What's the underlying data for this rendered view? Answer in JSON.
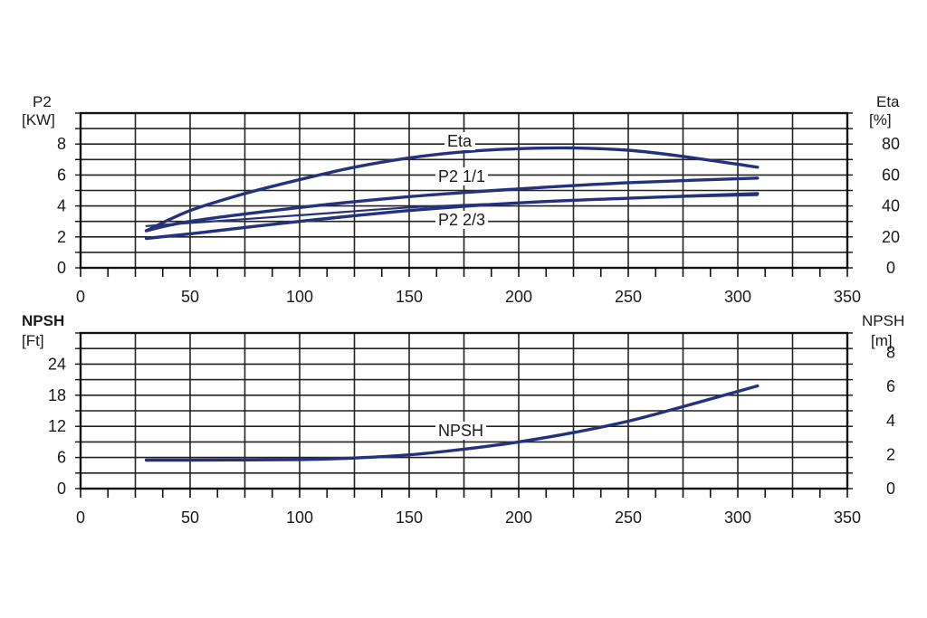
{
  "chart_data": [
    {
      "type": "line",
      "xlim": [
        0,
        350
      ],
      "x_ticks": [
        "0",
        "50",
        "100",
        "150",
        "200",
        "250",
        "300",
        "350"
      ],
      "left_axis": {
        "label_line1": "P2",
        "label_line2": "[KW]",
        "ylim": [
          0,
          10
        ],
        "ticks": [
          "0",
          "2",
          "4",
          "6",
          "8"
        ]
      },
      "right_axis": {
        "label_line1": "Eta",
        "label_line2": "[%]",
        "ylim": [
          0,
          100
        ],
        "ticks": [
          "0",
          "20",
          "40",
          "60",
          "80"
        ]
      },
      "grid": true,
      "series": [
        {
          "name": "Eta",
          "axis": "right",
          "x": [
            30,
            50,
            75,
            100,
            125,
            150,
            175,
            200,
            225,
            250,
            275,
            309
          ],
          "y": [
            24,
            37,
            48,
            57,
            65,
            71,
            75,
            77,
            77.5,
            76,
            72,
            65
          ]
        },
        {
          "name": "P2 1/1",
          "axis": "left",
          "x": [
            30,
            50,
            100,
            150,
            200,
            250,
            309
          ],
          "y": [
            2.4,
            3.0,
            3.9,
            4.6,
            5.1,
            5.5,
            5.8
          ]
        },
        {
          "name": "P2 2/3",
          "axis": "left",
          "x": [
            30,
            50,
            100,
            150,
            200,
            250,
            309
          ],
          "y": [
            1.9,
            2.2,
            3.0,
            3.7,
            4.2,
            4.5,
            4.8
          ]
        },
        {
          "name": "",
          "axis": "left",
          "x": [
            30,
            50,
            100,
            150,
            200,
            250,
            309
          ],
          "y": [
            2.7,
            2.9,
            3.4,
            3.9,
            4.2,
            4.5,
            4.7
          ]
        }
      ],
      "labels": [
        "Eta",
        "P2 1/1",
        "P2 2/3"
      ]
    },
    {
      "type": "line",
      "xlim": [
        0,
        350
      ],
      "x_ticks": [
        "0",
        "50",
        "100",
        "150",
        "200",
        "250",
        "300",
        "350"
      ],
      "left_axis": {
        "label_line1": "NPSH",
        "label_line2": "[Ft]",
        "ylim": [
          0,
          30
        ],
        "ticks": [
          "0",
          "6",
          "12",
          "18",
          "24"
        ]
      },
      "right_axis": {
        "label_line1": "NPSH",
        "label_line2": "[m]",
        "ylim": [
          0,
          9.144
        ],
        "ticks": [
          "0",
          "2",
          "4",
          "6",
          "8"
        ]
      },
      "grid": true,
      "series": [
        {
          "name": "NPSH",
          "axis": "left",
          "x": [
            30,
            50,
            100,
            125,
            150,
            175,
            200,
            225,
            250,
            275,
            309
          ],
          "y": [
            5.5,
            5.5,
            5.6,
            5.9,
            6.5,
            7.6,
            9.0,
            10.8,
            13.0,
            15.8,
            19.8
          ]
        }
      ],
      "labels": [
        "NPSH"
      ]
    }
  ],
  "style": {
    "curve_color": "#24317c",
    "grid_color": "#222222",
    "frame_color": "#111111"
  }
}
